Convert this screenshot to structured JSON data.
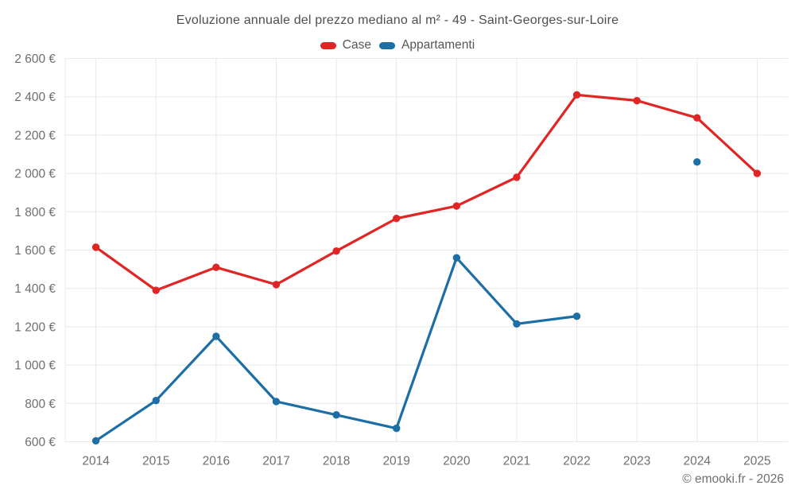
{
  "title": "Evoluzione annuale del prezzo mediano al m² - 49 - Saint-Georges-sur-Loire",
  "footer": "© emooki.fr - 2026",
  "colors": {
    "grid": "#e8e8e8",
    "axis_text": "#6f6f6f",
    "title_text": "#4e4e4e",
    "legend_text": "#565656",
    "background": "#ffffff"
  },
  "chart_data": {
    "type": "line",
    "title": "Evoluzione annuale del prezzo mediano al m² - 49 - Saint-Georges-sur-Loire",
    "xlabel": "",
    "ylabel": "",
    "grid": true,
    "legend_position": "top",
    "categories": [
      "2014",
      "2015",
      "2016",
      "2017",
      "2018",
      "2019",
      "2020",
      "2021",
      "2022",
      "2023",
      "2024",
      "2025"
    ],
    "series": [
      {
        "name": "Case",
        "color": "#e02525",
        "values": [
          1615,
          1390,
          1510,
          1420,
          1595,
          1765,
          1830,
          1980,
          2410,
          2380,
          2290,
          2000
        ]
      },
      {
        "name": "Appartamenti",
        "color": "#1c6ea4",
        "values": [
          605,
          815,
          1150,
          810,
          740,
          670,
          1560,
          1215,
          1255,
          null,
          2060,
          null
        ]
      }
    ],
    "ylim": [
      600,
      2600
    ],
    "yticks": [
      600,
      800,
      1000,
      1200,
      1400,
      1600,
      1800,
      2000,
      2200,
      2400,
      2600
    ],
    "yticklabels": [
      "600 €",
      "800 €",
      "1 000 €",
      "1 200 €",
      "1 400 €",
      "1 600 €",
      "1 800 €",
      "2 000 €",
      "2 200 €",
      "2 400 €",
      "2 600 €"
    ],
    "ytick_unit": "€"
  }
}
